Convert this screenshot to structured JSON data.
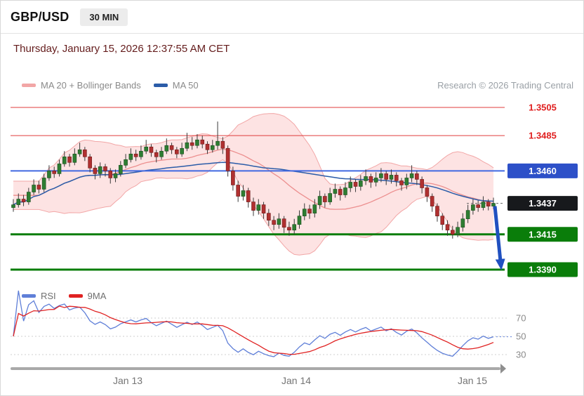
{
  "header": {
    "symbol": "GBP/USD",
    "timeframe": "30 MIN"
  },
  "date_line": "Thursday, January 15, 2026 12:37:55 AM CET",
  "watermark": "Research © 2026 Trading Central",
  "legend_main": {
    "items": [
      {
        "label": "MA 20 + Bollinger Bands",
        "color": "#f2a6a6"
      },
      {
        "label": "MA 50",
        "color": "#2b5ca8"
      }
    ]
  },
  "legend_rsi": {
    "items": [
      {
        "label": "RSI",
        "color": "#5f7fd8"
      },
      {
        "label": "9MA",
        "color": "#e02222"
      }
    ]
  },
  "chart_data": [
    {
      "type": "candlestick",
      "title": "GBP/USD 30 MIN with MA20 + Bollinger Bands and MA50",
      "ylim": [
        1.3377,
        1.3512
      ],
      "price_base": 1.34,
      "pip": 0.0001,
      "up_color": "#2e7d32",
      "up_edge": "#1b4f1f",
      "down_color": "#b03030",
      "down_edge": "#6e1a1a",
      "wick_color": "#3a3a3a",
      "band_fill": "rgba(248,168,168,0.32)",
      "band_edge": "#f2a6a6",
      "ma20_color": "#ec8f8f",
      "ma50_color": "#2b5ca8",
      "bollinger_period": 20,
      "ma50_period": 50,
      "levels": [
        {
          "label": "1.3505",
          "value": 1.3505,
          "role": "resistance",
          "line_color": "#e03c3c",
          "width": 1,
          "dashed": false,
          "badge_bg": "#ffffff",
          "badge_fg": "#e02020"
        },
        {
          "label": "1.3485",
          "value": 1.3485,
          "role": "resistance",
          "line_color": "#e03c3c",
          "width": 1,
          "dashed": false,
          "badge_bg": "#ffffff",
          "badge_fg": "#e02020"
        },
        {
          "label": "1.3460",
          "value": 1.346,
          "role": "pivot",
          "line_color": "#4169e1",
          "width": 2,
          "dashed": false,
          "badge_bg": "#2d50c8",
          "badge_fg": "#ffffff"
        },
        {
          "label": "1.3437",
          "value": 1.3437,
          "role": "last-price",
          "line_color": "#666666",
          "width": 1,
          "dashed": true,
          "badge_bg": "#17191c",
          "badge_fg": "#ffffff"
        },
        {
          "label": "1.3415",
          "value": 1.3415,
          "role": "support",
          "line_color": "#0a7d0a",
          "width": 3,
          "dashed": false,
          "badge_bg": "#0a7d0a",
          "badge_fg": "#ffffff"
        },
        {
          "label": "1.3390",
          "value": 1.339,
          "role": "support",
          "line_color": "#0a7d0a",
          "width": 3,
          "dashed": false,
          "badge_bg": "#0a7d0a",
          "badge_fg": "#ffffff"
        }
      ],
      "forecast_arrow": {
        "from_price": 1.3437,
        "to_price": 1.3396,
        "color": "#2050c0"
      },
      "x_axis": {
        "labels": [
          "Jan 13",
          "Jan 14",
          "Jan 15"
        ],
        "fracs": [
          0.24,
          0.585,
          0.945
        ]
      },
      "candles_ohlc_pips": [
        [
          34,
          40,
          31,
          36
        ],
        [
          36,
          44,
          34,
          40
        ],
        [
          40,
          43,
          35,
          38
        ],
        [
          38,
          48,
          36,
          45
        ],
        [
          45,
          54,
          43,
          50
        ],
        [
          50,
          53,
          44,
          47
        ],
        [
          47,
          58,
          45,
          55
        ],
        [
          55,
          64,
          53,
          60
        ],
        [
          60,
          63,
          55,
          58
        ],
        [
          58,
          68,
          56,
          65
        ],
        [
          65,
          74,
          63,
          70
        ],
        [
          70,
          72,
          63,
          66
        ],
        [
          66,
          76,
          64,
          72
        ],
        [
          72,
          80,
          70,
          75
        ],
        [
          75,
          77,
          67,
          70
        ],
        [
          70,
          72,
          59,
          62
        ],
        [
          62,
          64,
          54,
          58
        ],
        [
          58,
          66,
          55,
          63
        ],
        [
          63,
          65,
          56,
          60
        ],
        [
          60,
          62,
          51,
          55
        ],
        [
          55,
          61,
          52,
          58
        ],
        [
          58,
          67,
          56,
          64
        ],
        [
          64,
          72,
          62,
          68
        ],
        [
          68,
          76,
          66,
          72
        ],
        [
          72,
          75,
          67,
          70
        ],
        [
          70,
          78,
          68,
          74
        ],
        [
          74,
          82,
          72,
          77
        ],
        [
          77,
          79,
          70,
          73
        ],
        [
          73,
          75,
          66,
          70
        ],
        [
          70,
          77,
          68,
          74
        ],
        [
          74,
          83,
          72,
          78
        ],
        [
          78,
          80,
          72,
          75
        ],
        [
          75,
          77,
          69,
          72
        ],
        [
          72,
          80,
          70,
          76
        ],
        [
          76,
          87,
          74,
          80
        ],
        [
          80,
          84,
          75,
          78
        ],
        [
          78,
          86,
          76,
          82
        ],
        [
          82,
          85,
          76,
          79
        ],
        [
          79,
          81,
          72,
          75
        ],
        [
          75,
          82,
          73,
          78
        ],
        [
          78,
          95,
          75,
          81
        ],
        [
          81,
          84,
          72,
          76
        ],
        [
          76,
          78,
          56,
          60
        ],
        [
          60,
          63,
          46,
          50
        ],
        [
          50,
          53,
          38,
          42
        ],
        [
          42,
          50,
          39,
          46
        ],
        [
          46,
          48,
          34,
          38
        ],
        [
          38,
          41,
          28,
          32
        ],
        [
          32,
          40,
          29,
          36
        ],
        [
          36,
          38,
          26,
          30
        ],
        [
          30,
          33,
          21,
          25
        ],
        [
          25,
          28,
          18,
          22
        ],
        [
          22,
          30,
          19,
          26
        ],
        [
          26,
          28,
          16,
          20
        ],
        [
          20,
          24,
          14,
          18
        ],
        [
          18,
          26,
          15,
          22
        ],
        [
          22,
          32,
          19,
          28
        ],
        [
          28,
          37,
          25,
          33
        ],
        [
          33,
          36,
          26,
          30
        ],
        [
          30,
          40,
          27,
          36
        ],
        [
          36,
          46,
          33,
          42
        ],
        [
          42,
          44,
          34,
          38
        ],
        [
          38,
          48,
          36,
          44
        ],
        [
          44,
          51,
          41,
          47
        ],
        [
          47,
          49,
          39,
          43
        ],
        [
          43,
          52,
          41,
          48
        ],
        [
          48,
          56,
          45,
          52
        ],
        [
          52,
          54,
          45,
          49
        ],
        [
          49,
          57,
          46,
          53
        ],
        [
          53,
          61,
          50,
          56
        ],
        [
          56,
          58,
          48,
          52
        ],
        [
          52,
          59,
          49,
          55
        ],
        [
          55,
          62,
          52,
          58
        ],
        [
          58,
          60,
          50,
          54
        ],
        [
          54,
          61,
          51,
          57
        ],
        [
          57,
          59,
          49,
          53
        ],
        [
          53,
          55,
          46,
          50
        ],
        [
          50,
          58,
          47,
          55
        ],
        [
          55,
          64,
          52,
          58
        ],
        [
          58,
          60,
          50,
          54
        ],
        [
          54,
          56,
          44,
          48
        ],
        [
          48,
          50,
          38,
          42
        ],
        [
          42,
          44,
          31,
          35
        ],
        [
          35,
          37,
          24,
          28
        ],
        [
          28,
          30,
          18,
          22
        ],
        [
          22,
          25,
          14,
          18
        ],
        [
          18,
          21,
          12,
          15
        ],
        [
          15,
          24,
          13,
          20
        ],
        [
          20,
          30,
          17,
          26
        ],
        [
          26,
          36,
          23,
          32
        ],
        [
          32,
          40,
          29,
          36
        ],
        [
          36,
          39,
          31,
          34
        ],
        [
          34,
          42,
          32,
          38
        ],
        [
          38,
          40,
          32,
          35
        ],
        [
          35,
          41,
          33,
          37
        ]
      ]
    },
    {
      "type": "line",
      "title": "RSI",
      "ylim": [
        0,
        100
      ],
      "gridlines": [
        70,
        50,
        30
      ],
      "grid_color": "#cfcfcf",
      "label_color": "#8a8a8a",
      "series": [
        {
          "name": "RSI",
          "period": 14,
          "color": "#5f7fd8",
          "derived_from": "candle closes"
        },
        {
          "name": "9MA",
          "period": 9,
          "color": "#e02222",
          "derived_from": "RSI"
        }
      ]
    }
  ]
}
